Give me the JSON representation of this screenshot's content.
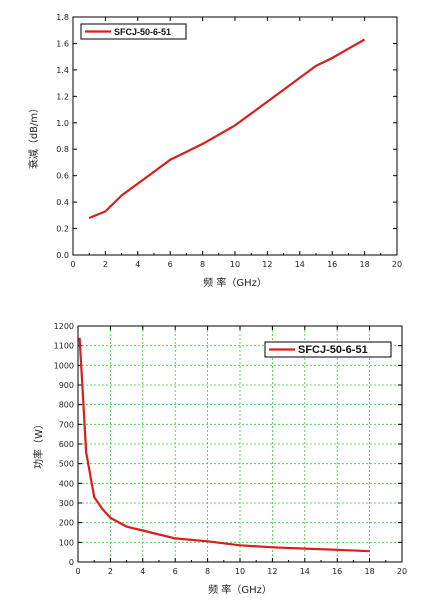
{
  "chart_data": [
    {
      "type": "line",
      "xlabel": "频 率（GHz）",
      "ylabel": "衰减（dB/m）",
      "xlim": [
        0,
        20
      ],
      "ylim": [
        0,
        1.8
      ],
      "xticks": [
        "0",
        "2",
        "4",
        "6",
        "8",
        "10",
        "12",
        "14",
        "16",
        "18",
        "20"
      ],
      "yticks": [
        "0.0",
        "0.2",
        "0.4",
        "0.6",
        "0.8",
        "1.0",
        "1.2",
        "1.4",
        "1.6",
        "1.8"
      ],
      "grid": false,
      "legend_position": "top-left",
      "color": "#d81e1e",
      "series": [
        {
          "name": "SFCJ-50-6-51",
          "x": [
            1,
            2,
            3,
            4,
            5,
            6,
            7,
            8,
            9,
            10,
            11,
            12,
            13,
            14,
            15,
            16,
            17,
            18
          ],
          "y": [
            0.28,
            0.33,
            0.45,
            0.54,
            0.63,
            0.72,
            0.78,
            0.84,
            0.91,
            0.98,
            1.07,
            1.16,
            1.25,
            1.34,
            1.43,
            1.49,
            1.56,
            1.63
          ]
        }
      ]
    },
    {
      "type": "line",
      "xlabel": "频 率（GHz）",
      "ylabel": "功率（W）",
      "xlim": [
        0,
        20
      ],
      "ylim": [
        0,
        1200
      ],
      "xticks": [
        "0",
        "2",
        "4",
        "6",
        "8",
        "10",
        "12",
        "14",
        "16",
        "18",
        "20"
      ],
      "yticks": [
        "0",
        "100",
        "200",
        "300",
        "400",
        "500",
        "600",
        "700",
        "800",
        "900",
        "1000",
        "1100",
        "1200"
      ],
      "grid": true,
      "legend_position": "top-right",
      "color": "#d81e1e",
      "series": [
        {
          "name": "SFCJ-50-6-51",
          "x": [
            0.1,
            0.3,
            0.5,
            1,
            1.5,
            2,
            3,
            4,
            5,
            6,
            8,
            10,
            12,
            14,
            16,
            18
          ],
          "y": [
            1140,
            850,
            560,
            330,
            270,
            225,
            180,
            160,
            140,
            120,
            105,
            85,
            75,
            68,
            62,
            55
          ]
        }
      ]
    }
  ]
}
